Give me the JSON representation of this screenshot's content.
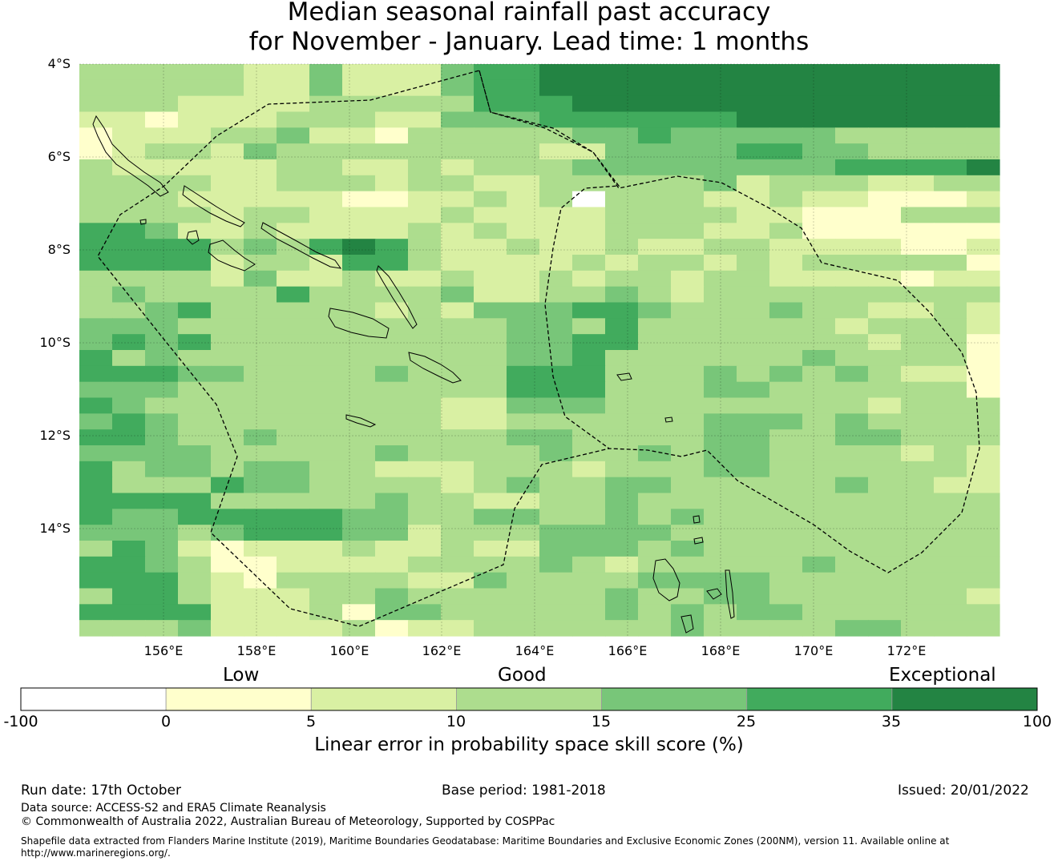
{
  "title": {
    "line1": "Median seasonal rainfall past accuracy",
    "line2": "for November - January. Lead time: 1 months"
  },
  "map": {
    "lat_labels": [
      "4°S",
      "6°S",
      "8°S",
      "10°S",
      "12°S",
      "14°S"
    ],
    "lon_labels": [
      "156°E",
      "158°E",
      "160°E",
      "162°E",
      "164°E",
      "166°E",
      "168°E",
      "170°E",
      "172°E"
    ],
    "skill_grid_legend_classes": [
      "3333322422245566666666666666",
      "3333322422245566666666666666",
      "3332222333335556666666666666",
      "2212223332244455555566666666",
      "1222334221333334454444433333",
      "1233243333333322444455443333",
      "3222223322323334444444455556",
      "3333223332332233333423332233",
      "3332222211223230333223221112",
      "3333233222232222333322111333",
      "5542232222323222333223111111",
      "5555343565322322322332222112",
      "5555233255322223233232333331",
      "3333242232232232332332222122",
      "3433335333342233432333333333",
      "3345333332324445543334332232",
      "4443333333333443533333323332",
      "4545333333333445533333332331",
      "5343333333333445333333433331",
      "5554433334333555333434343221",
      "4443333333333555333443333331",
      "5433333333322444333333332333",
      "4543333333322333333444343333",
      "5543343333333443333443344333",
      "4444333334333343343443333232",
      "5344344332223332333443333332",
      "5333544333323433443333343322",
      "5555333334332233433333333333",
      "5445555544334433434333333333",
      "4443455544233344443333333333",
      "3542122232232244434333333333",
      "5543112222333343233333433333",
      "5553213333224333344443333333",
      "3553222334333333433443333332",
      "5555222314433333434344333333",
      "3334222231223333334333344333"
    ]
  },
  "colorbar": {
    "category_labels": [
      "Low",
      "Good",
      "Exceptional"
    ],
    "ticks": [
      "-100",
      "0",
      "5",
      "10",
      "15",
      "25",
      "35",
      "100"
    ],
    "colors": [
      "#ffffff",
      "#ffffcc",
      "#d9f0a3",
      "#addd8e",
      "#78c679",
      "#41ab5d",
      "#238443"
    ],
    "label": "Linear error in probability space skill score (%)"
  },
  "footer": {
    "run_date": "Run date: 17th October",
    "base_period": "Base period: 1981-2018",
    "issued": "Issued: 20/01/2022",
    "data_source": "Data source: ACCESS-S2 and ERA5 Climate Reanalysis",
    "copyright": "© Commonwealth of Australia 2022, Australian Bureau of Meteorology, Supported by COSPPac",
    "shapefile": "Shapefile data extracted from Flanders Marine Institute (2019), Maritime Boundaries Geodatabase: Maritime Boundaries and Exclusive Economic Zones (200NM), version 11. Available online at http://www.marineregions.org/."
  }
}
